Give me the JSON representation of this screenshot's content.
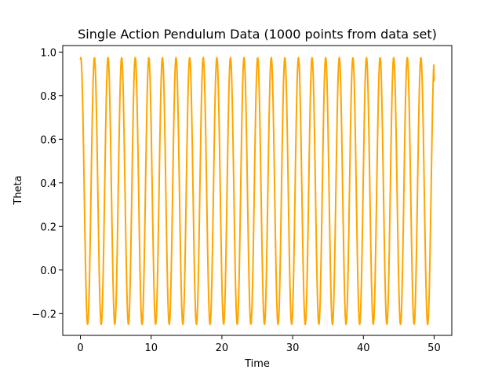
{
  "chart_data": {
    "type": "line",
    "title": "Single Action Pendulum Data (1000 points from data set)",
    "xlabel": "Time",
    "ylabel": "Theta",
    "xlim": [
      -2.5,
      52.5
    ],
    "ylim": [
      -0.3,
      1.03
    ],
    "xticks": [
      0,
      10,
      20,
      30,
      40,
      50
    ],
    "xtick_labels": [
      "0",
      "10",
      "20",
      "30",
      "40",
      "50"
    ],
    "yticks": [
      -0.2,
      0.0,
      0.2,
      0.4,
      0.6,
      0.8,
      1.0
    ],
    "ytick_labels": [
      "−0.2",
      "0.0",
      "0.2",
      "0.4",
      "0.6",
      "0.8",
      "1.0"
    ],
    "grid": false,
    "legend": "none",
    "series": [
      {
        "color": "#ffa500",
        "points": 1000,
        "x_start": 0,
        "x_end": 50,
        "theta_start": 0.965,
        "theta_end": 0.865,
        "theta_max": 0.975,
        "theta_min": -0.25,
        "period": 1.923,
        "oscillations": 26
      }
    ]
  }
}
